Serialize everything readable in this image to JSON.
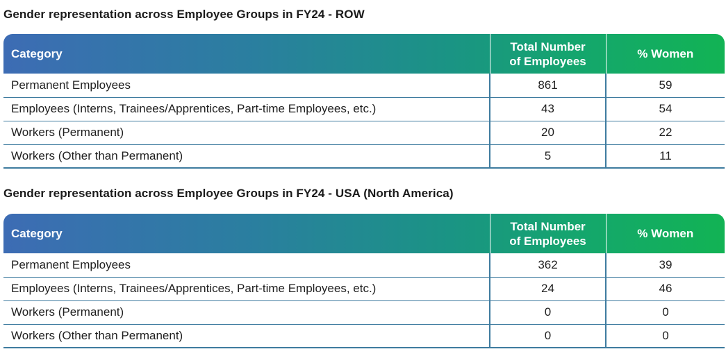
{
  "sections": [
    {
      "title": "Gender representation across Employee Groups in FY24 - ROW",
      "headers": {
        "category": "Category",
        "total_line1": "Total Number",
        "total_line2": "of Employees",
        "women": "% Women"
      },
      "rows": [
        {
          "category": "Permanent Employees",
          "total": "861",
          "women": "59"
        },
        {
          "category": "Employees (Interns, Trainees/Apprentices, Part-time Employees, etc.)",
          "total": "43",
          "women": "54"
        },
        {
          "category": "Workers (Permanent)",
          "total": "20",
          "women": "22"
        },
        {
          "category": "Workers (Other than Permanent)",
          "total": "5",
          "women": "11"
        }
      ]
    },
    {
      "title": "Gender representation across Employee Groups in FY24 - USA (North America)",
      "headers": {
        "category": "Category",
        "total_line1": "Total Number",
        "total_line2": "of Employees",
        "women": "% Women"
      },
      "rows": [
        {
          "category": "Permanent Employees",
          "total": "362",
          "women": "39"
        },
        {
          "category": "Employees (Interns, Trainees/Apprentices, Part-time Employees, etc.)",
          "total": "24",
          "women": "46"
        },
        {
          "category": "Workers (Permanent)",
          "total": "0",
          "women": "0"
        },
        {
          "category": "Workers (Other than Permanent)",
          "total": "0",
          "women": "0"
        }
      ]
    }
  ],
  "colors": {
    "header_gradient_start": "#3d6cb4",
    "header_gradient_end": "#12b354",
    "grid_line": "#3e7b9f"
  }
}
